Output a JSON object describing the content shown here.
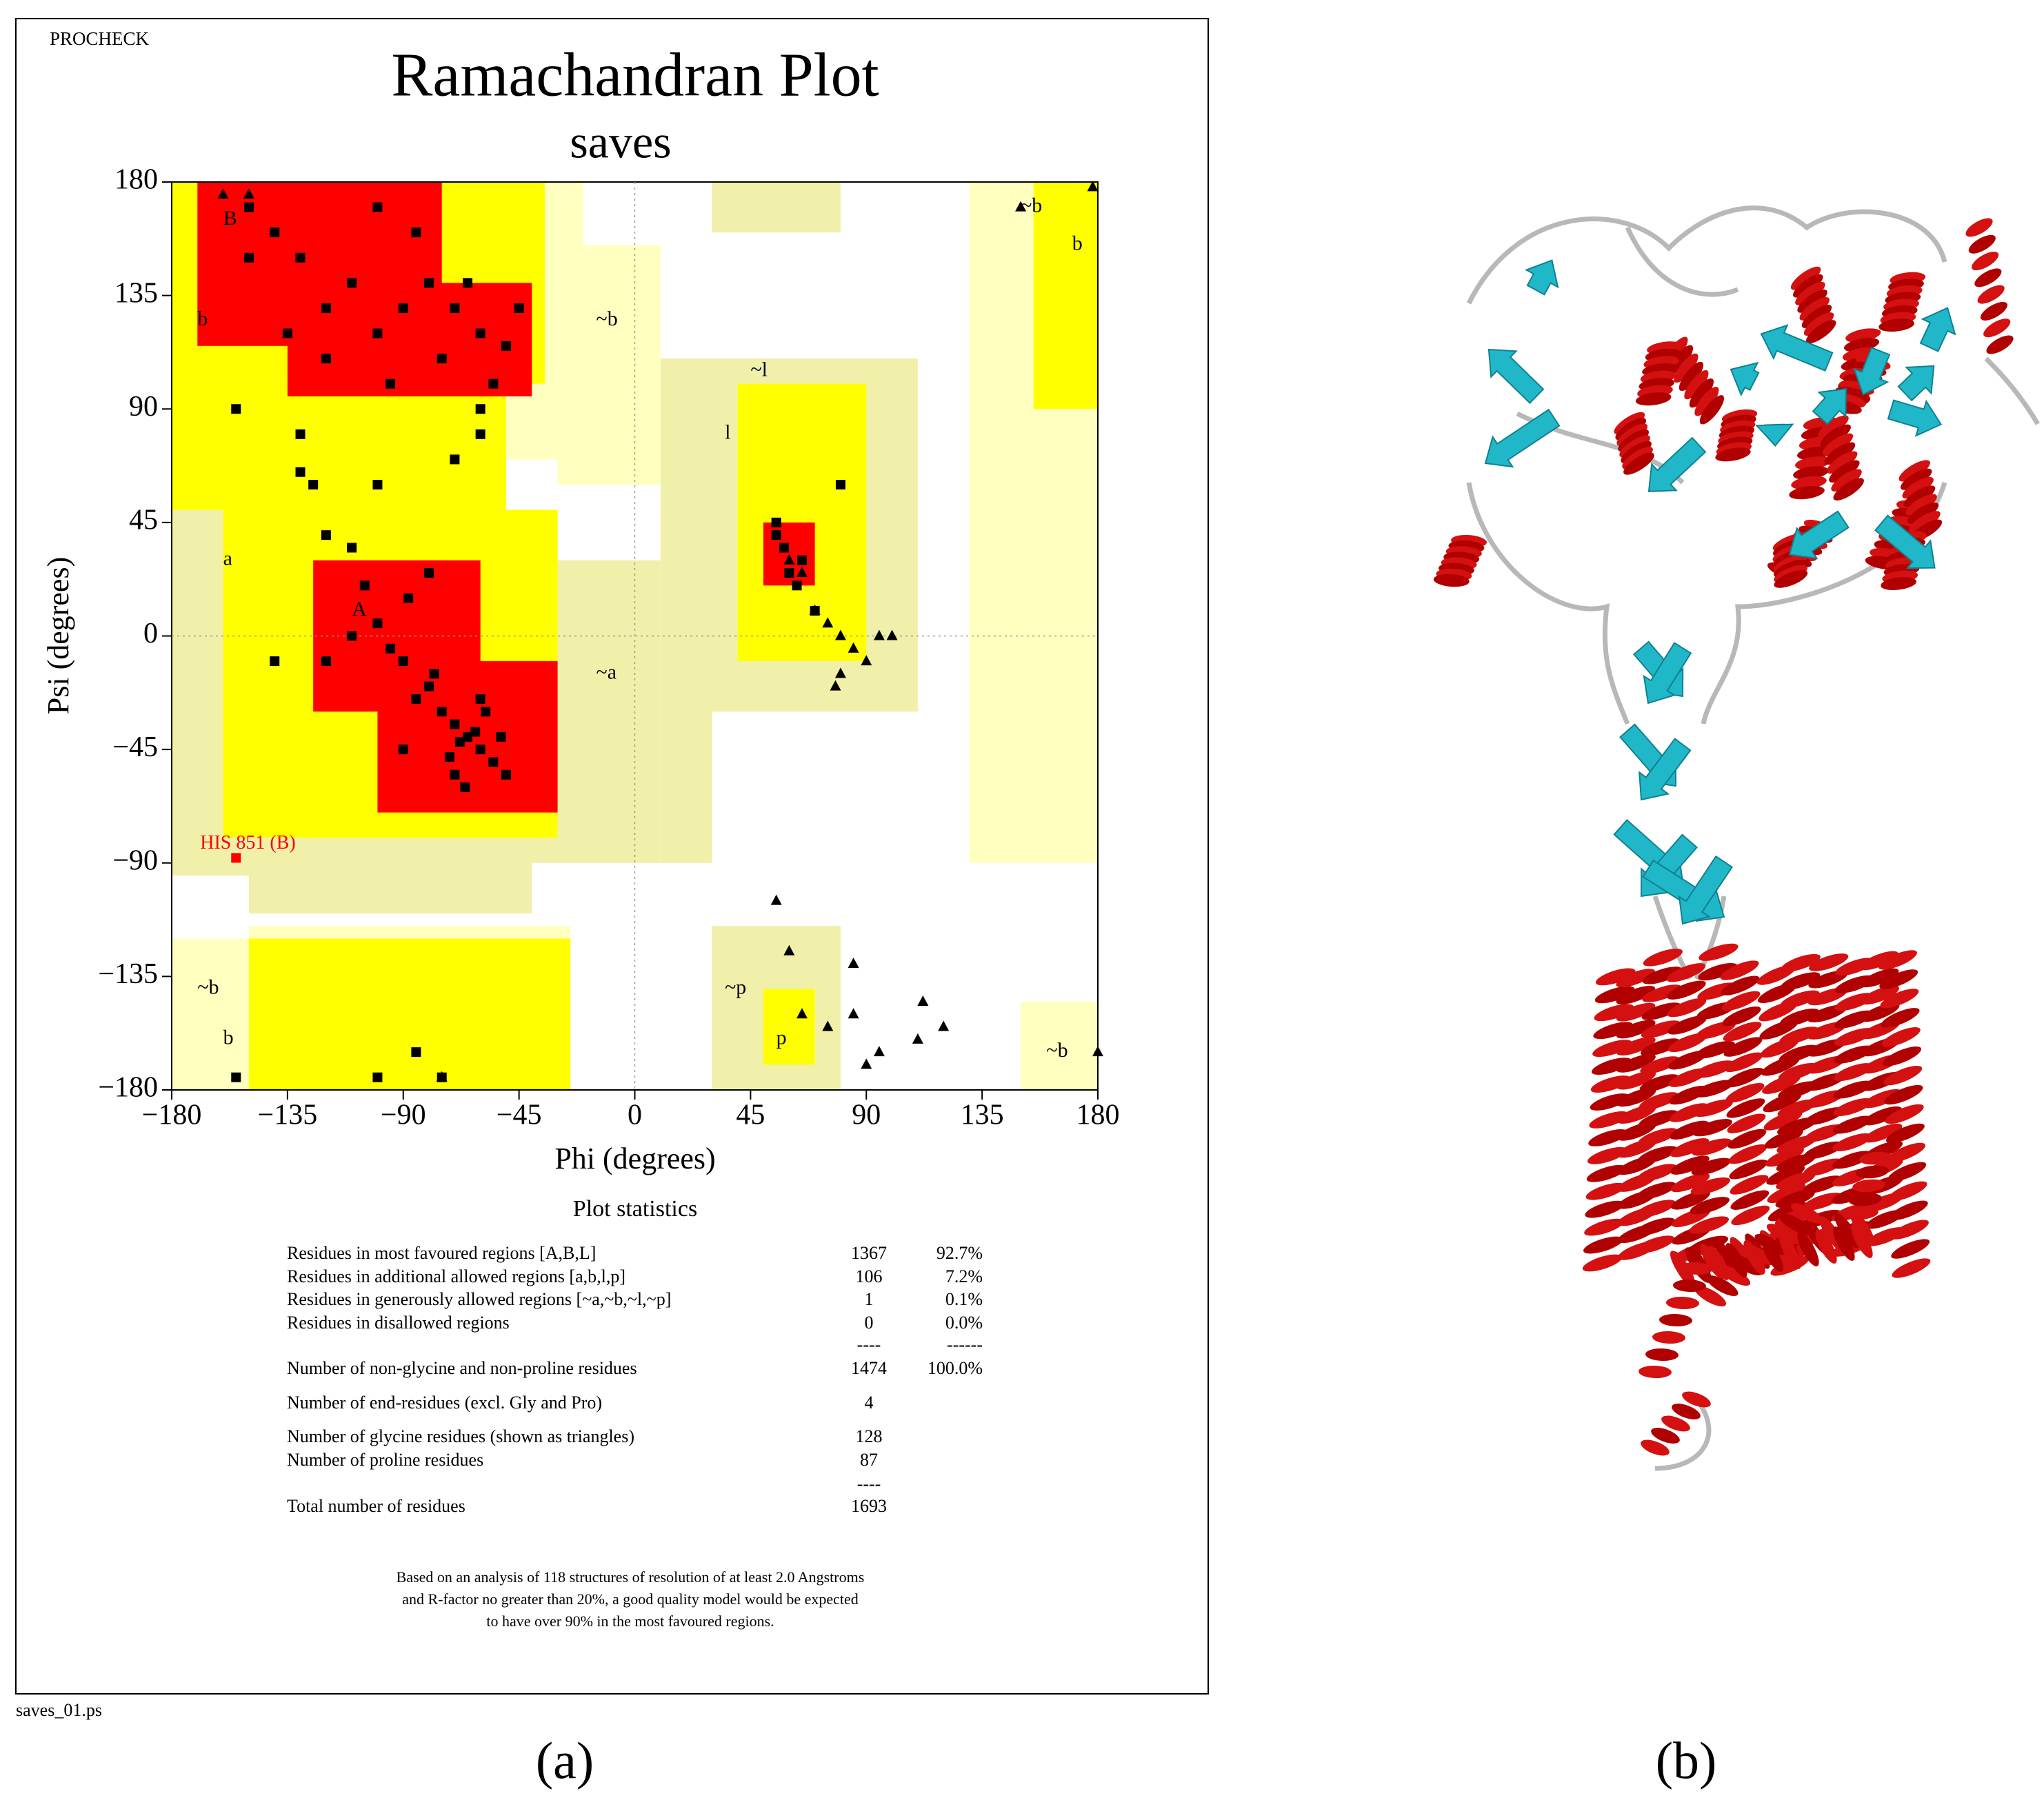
{
  "header": {
    "program": "PROCHECK",
    "file": "saves_01.ps",
    "panel_a": "(a)",
    "panel_b": "(b)"
  },
  "chart_data": {
    "type": "scatter",
    "title": "Ramachandran Plot",
    "subtitle": "saves",
    "xlabel": "Phi (degrees)",
    "ylabel": "Psi (degrees)",
    "xlim": [
      -180,
      180
    ],
    "ylim": [
      -180,
      180
    ],
    "xticks": [
      {
        "value": -180,
        "label": "−180"
      },
      {
        "value": -135,
        "label": "−135"
      },
      {
        "value": -90,
        "label": "−90"
      },
      {
        "value": -45,
        "label": "−45"
      },
      0,
      45,
      90,
      135,
      180
    ],
    "yticks": [
      {
        "value": -180,
        "label": "−180"
      },
      {
        "value": -135,
        "label": "−135"
      },
      {
        "value": -90,
        "label": "−90"
      },
      {
        "value": -45,
        "label": "−45"
      },
      0,
      45,
      90,
      135,
      180
    ],
    "zero_lines": true,
    "region_labels": [
      "B",
      "b",
      "~b",
      "~l",
      "l",
      "a",
      "A",
      "~a",
      "~p",
      "p",
      "~b",
      "b",
      "~b",
      "b",
      "~b"
    ],
    "series": [
      {
        "marker": "square",
        "color": "#000000",
        "x": [
          -65,
          -60,
          -70,
          -75,
          -55,
          -68,
          -62,
          -80,
          -90,
          -100,
          -95,
          -85,
          -72,
          -58,
          -50,
          -110,
          -105,
          -88,
          -78,
          -66,
          -60,
          -52,
          -70,
          -120,
          -140,
          -90,
          -120,
          -130,
          -110,
          -100,
          -90,
          -80,
          -140,
          -150,
          -70,
          -60,
          -65,
          -75,
          -55,
          -60,
          -95,
          -150,
          -120,
          -135,
          -85,
          -100,
          -45,
          -50,
          -60,
          -130,
          -125,
          -70,
          -100,
          -120,
          -110,
          -80,
          -155,
          -130,
          55,
          58,
          60,
          65,
          55,
          63,
          70,
          80,
          -85,
          -100,
          -75,
          -155
        ],
        "values": [
          -40,
          -45,
          -35,
          -30,
          -50,
          -42,
          -38,
          -20,
          -10,
          5,
          -5,
          -25,
          -48,
          -30,
          -55,
          0,
          20,
          15,
          -15,
          -60,
          -25,
          -40,
          -55,
          -10,
          -10,
          -45,
          130,
          150,
          140,
          120,
          130,
          140,
          160,
          170,
          130,
          120,
          140,
          110,
          100,
          90,
          100,
          150,
          110,
          120,
          160,
          170,
          130,
          115,
          80,
          65,
          60,
          70,
          60,
          40,
          35,
          25,
          90,
          80,
          45,
          35,
          25,
          30,
          40,
          20,
          10,
          60,
          -165,
          -175,
          -175,
          -175
        ]
      },
      {
        "marker": "triangle",
        "color": "#000000",
        "x": [
          60,
          65,
          70,
          75,
          80,
          85,
          90,
          95,
          100,
          80,
          78,
          55,
          60,
          85,
          65,
          75,
          85,
          90,
          95,
          112,
          120,
          110,
          150,
          180,
          178,
          -160,
          -150,
          -75
        ],
        "values": [
          30,
          25,
          10,
          5,
          0,
          -5,
          -10,
          0,
          0,
          -15,
          -20,
          -105,
          -125,
          -130,
          -150,
          -155,
          -150,
          -170,
          -165,
          -145,
          -155,
          -160,
          170,
          -165,
          178,
          175,
          175,
          -175
        ]
      },
      {
        "marker": "square",
        "color": "#ff0000",
        "label": "HIS 851 (B)",
        "x": [
          -155
        ],
        "values": [
          -88
        ]
      }
    ]
  },
  "stats": {
    "title": "Plot statistics",
    "rows": [
      {
        "label": "Residues in most favoured regions  [A,B,L]",
        "count": "1367",
        "percent": "92.7%"
      },
      {
        "label": "Residues in additional allowed regions  [a,b,l,p]",
        "count": "106",
        "percent": "7.2%"
      },
      {
        "label": "Residues in generously allowed regions  [~a,~b,~l,~p]",
        "count": "1",
        "percent": "0.1%"
      },
      {
        "label": "Residues in disallowed regions",
        "count": "0",
        "percent": "0.0%"
      },
      {
        "count": "----",
        "percent": "------"
      },
      {
        "label": "Number of non-glycine and non-proline residues",
        "count": "1474",
        "percent": "100.0%"
      },
      {
        "label": "Number of end-residues (excl. Gly and Pro)",
        "count": "4"
      },
      {
        "label": "Number of glycine residues (shown as triangles)",
        "count": "128"
      },
      {
        "label": "Number of proline residues",
        "count": "87"
      },
      {
        "count": "----"
      },
      {
        "label": "Total number of residues",
        "count": "1693"
      }
    ],
    "note": [
      "Based on an analysis of 118 structures of resolution of at least 2.0 Angstroms",
      "and R-factor no greater than 20%, a good quality model would be expected",
      "to have over 90% in the most favoured regions."
    ]
  }
}
